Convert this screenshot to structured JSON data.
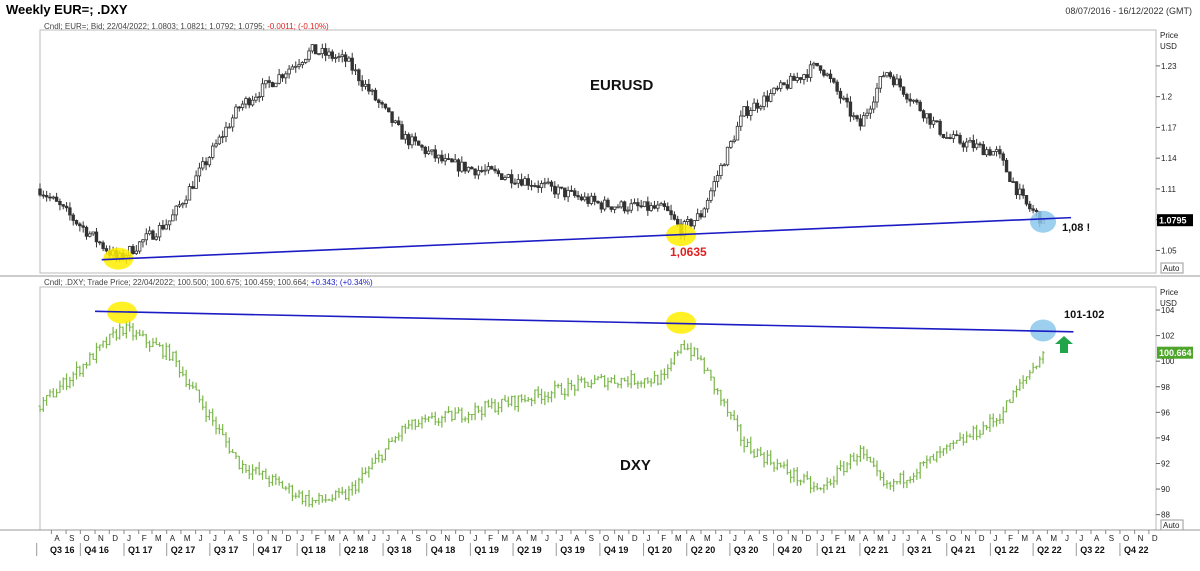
{
  "window": {
    "title": "Weekly EUR=; .DXY",
    "date_range": "08/07/2016 - 16/12/2022 (GMT)"
  },
  "colors": {
    "eur_candles": "#333333",
    "dxy_bars": "#7ab648",
    "trendline": "#1c1cc4",
    "highlight_yellow": "#ffee00",
    "highlight_blue": "#8cc8ec",
    "price_tag_eur": "#000000",
    "price_tag_dxy": "#4da52a",
    "annotation_red": "#e02020",
    "arrow_green": "#22a54a"
  },
  "chart_data": [
    {
      "type": "candlestick",
      "header": "Cndl; EUR=; Bid; 22/04/2022; 1.0803; 1.0821; 1.0792; 1.0795; -0.0011; (-0.10%)",
      "header_parts": {
        "prefix": "Cndl; EUR=; Bid; 22/04/2022; 1.0803; 1.0821; 1.0792; 1.0795;",
        "change": "-0.0011; (-0.10%)"
      },
      "axis_title": "Price",
      "axis_unit": "USD",
      "axis_mode": "Auto",
      "ylim": [
        1.028,
        1.265
      ],
      "y_ticks": [
        1.05,
        1.08,
        1.11,
        1.14,
        1.17,
        1.2,
        1.23
      ],
      "y_tick_labels": [
        "1.05",
        "",
        "1.11",
        "1.14",
        "1.17",
        "1.2",
        "1.23"
      ],
      "last_value_label": "1.0795",
      "last_value": 1.0795,
      "label_main": "EURUSD",
      "annotations": [
        "1,0635",
        "1,08 !"
      ],
      "trendline": [
        {
          "x": "2016-11-15",
          "y": 1.041
        },
        {
          "x": "2022-06-20",
          "y": 1.082
        }
      ],
      "highlights": [
        {
          "x": "2016-12-20",
          "y": 1.042,
          "color": "yellow"
        },
        {
          "x": "2020-03-20",
          "y": 1.065,
          "color": "yellow"
        },
        {
          "x": "2022-04-22",
          "y": 1.078,
          "color": "blue"
        }
      ],
      "x_dates": [
        "2016-07-08",
        "2016-12-20",
        "2017-04-10",
        "2017-09-01",
        "2018-02-01",
        "2018-04-15",
        "2018-08-15",
        "2018-11-10",
        "2019-04-15",
        "2019-10-01",
        "2020-02-15",
        "2020-03-20",
        "2020-05-01",
        "2020-07-31",
        "2021-01-06",
        "2021-03-31",
        "2021-05-25",
        "2021-10-01",
        "2022-01-15",
        "2022-03-15",
        "2022-04-22"
      ],
      "y_values": [
        1.11,
        1.041,
        1.08,
        1.19,
        1.245,
        1.235,
        1.16,
        1.135,
        1.12,
        1.095,
        1.09,
        1.07,
        1.085,
        1.185,
        1.232,
        1.17,
        1.226,
        1.16,
        1.145,
        1.095,
        1.0795
      ]
    },
    {
      "type": "ohlc",
      "header": "Cndl; .DXY; Trade Price; 22/04/2022; 100.500; 100.675; 100.459; 100.664; +0.343; (+0.34%)",
      "header_parts": {
        "prefix": "Cndl; .DXY; Trade Price; 22/04/2022; 100.500; 100.675; 100.459; 100.664;",
        "change": "+0.343; (+0.34%)"
      },
      "axis_title": "Price",
      "axis_unit": "USD",
      "axis_mode": "Auto",
      "ylim": [
        86.8,
        105.8
      ],
      "y_ticks": [
        88,
        90,
        92,
        94,
        96,
        98,
        100,
        102,
        104
      ],
      "y_tick_labels": [
        "88",
        "90",
        "92",
        "94",
        "96",
        "98",
        "100",
        "102",
        "104"
      ],
      "last_value_label": "100.664",
      "last_value": 100.664,
      "label_main": "DXY",
      "annotations": [
        "101-102"
      ],
      "trendline": [
        {
          "x": "2016-11-01",
          "y": 103.9
        },
        {
          "x": "2022-06-25",
          "y": 102.3
        }
      ],
      "highlights": [
        {
          "x": "2016-12-28",
          "y": 103.8,
          "color": "yellow"
        },
        {
          "x": "2020-03-20",
          "y": 103.0,
          "color": "yellow"
        },
        {
          "x": "2022-04-22",
          "y": 102.4,
          "color": "blue"
        }
      ],
      "x_dates": [
        "2016-07-08",
        "2016-12-28",
        "2017-04-10",
        "2017-09-01",
        "2018-02-01",
        "2018-04-15",
        "2018-08-15",
        "2019-04-15",
        "2019-10-01",
        "2020-02-15",
        "2020-03-20",
        "2020-05-01",
        "2020-07-31",
        "2021-01-06",
        "2021-03-31",
        "2021-05-25",
        "2022-01-15",
        "2022-04-22"
      ],
      "y_values": [
        96.5,
        102.6,
        100.5,
        92.0,
        89.0,
        89.5,
        94.8,
        97.0,
        98.5,
        98.6,
        101.5,
        100.0,
        93.5,
        89.8,
        93.0,
        90.0,
        95.5,
        100.664
      ]
    }
  ],
  "x_axis": {
    "range": [
      "2016-07-08",
      "2022-12-16"
    ],
    "month_letters": [
      "A",
      "S",
      "O",
      "N",
      "D",
      "J",
      "F",
      "M",
      "A",
      "M",
      "J",
      "J",
      "A",
      "S",
      "O",
      "N",
      "D",
      "J",
      "F",
      "M",
      "A",
      "M",
      "J",
      "J",
      "A",
      "S",
      "O",
      "N",
      "D",
      "J",
      "F",
      "M",
      "A",
      "M",
      "J",
      "J",
      "A",
      "S",
      "O",
      "N",
      "D",
      "J",
      "F",
      "M",
      "A",
      "M",
      "J",
      "J",
      "A",
      "S",
      "O",
      "N",
      "D",
      "J",
      "F",
      "M",
      "A",
      "M",
      "J",
      "J",
      "A",
      "S",
      "O",
      "N",
      "D",
      "J",
      "F",
      "M",
      "A",
      "M",
      "J",
      "J",
      "A",
      "S",
      "O",
      "N",
      "D"
    ],
    "quarters": [
      "Q3 16",
      "Q4 16",
      "Q1 17",
      "Q2 17",
      "Q3 17",
      "Q4 17",
      "Q1 18",
      "Q2 18",
      "Q3 18",
      "Q4 18",
      "Q1 19",
      "Q2 19",
      "Q3 19",
      "Q4 19",
      "Q1 20",
      "Q2 20",
      "Q3 20",
      "Q4 20",
      "Q1 21",
      "Q2 21",
      "Q3 21",
      "Q4 21",
      "Q1 22",
      "Q2 22",
      "Q3 22",
      "Q4 22"
    ]
  }
}
